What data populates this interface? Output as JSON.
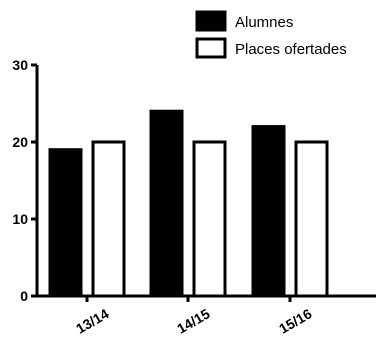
{
  "chart_data": {
    "type": "bar",
    "title": "",
    "xlabel": "",
    "ylabel": "",
    "categories": [
      "13/14",
      "14/15",
      "15/16"
    ],
    "series": [
      {
        "name": "Alumnes",
        "values": [
          19,
          24,
          22
        ],
        "color": "#000000"
      },
      {
        "name": "Places ofertades",
        "values": [
          20,
          20,
          20
        ],
        "color": "#ffffff"
      }
    ],
    "ylim": [
      0,
      30
    ],
    "yticks": [
      0,
      10,
      20,
      30
    ],
    "grid": false,
    "legend_position": "top-right"
  }
}
